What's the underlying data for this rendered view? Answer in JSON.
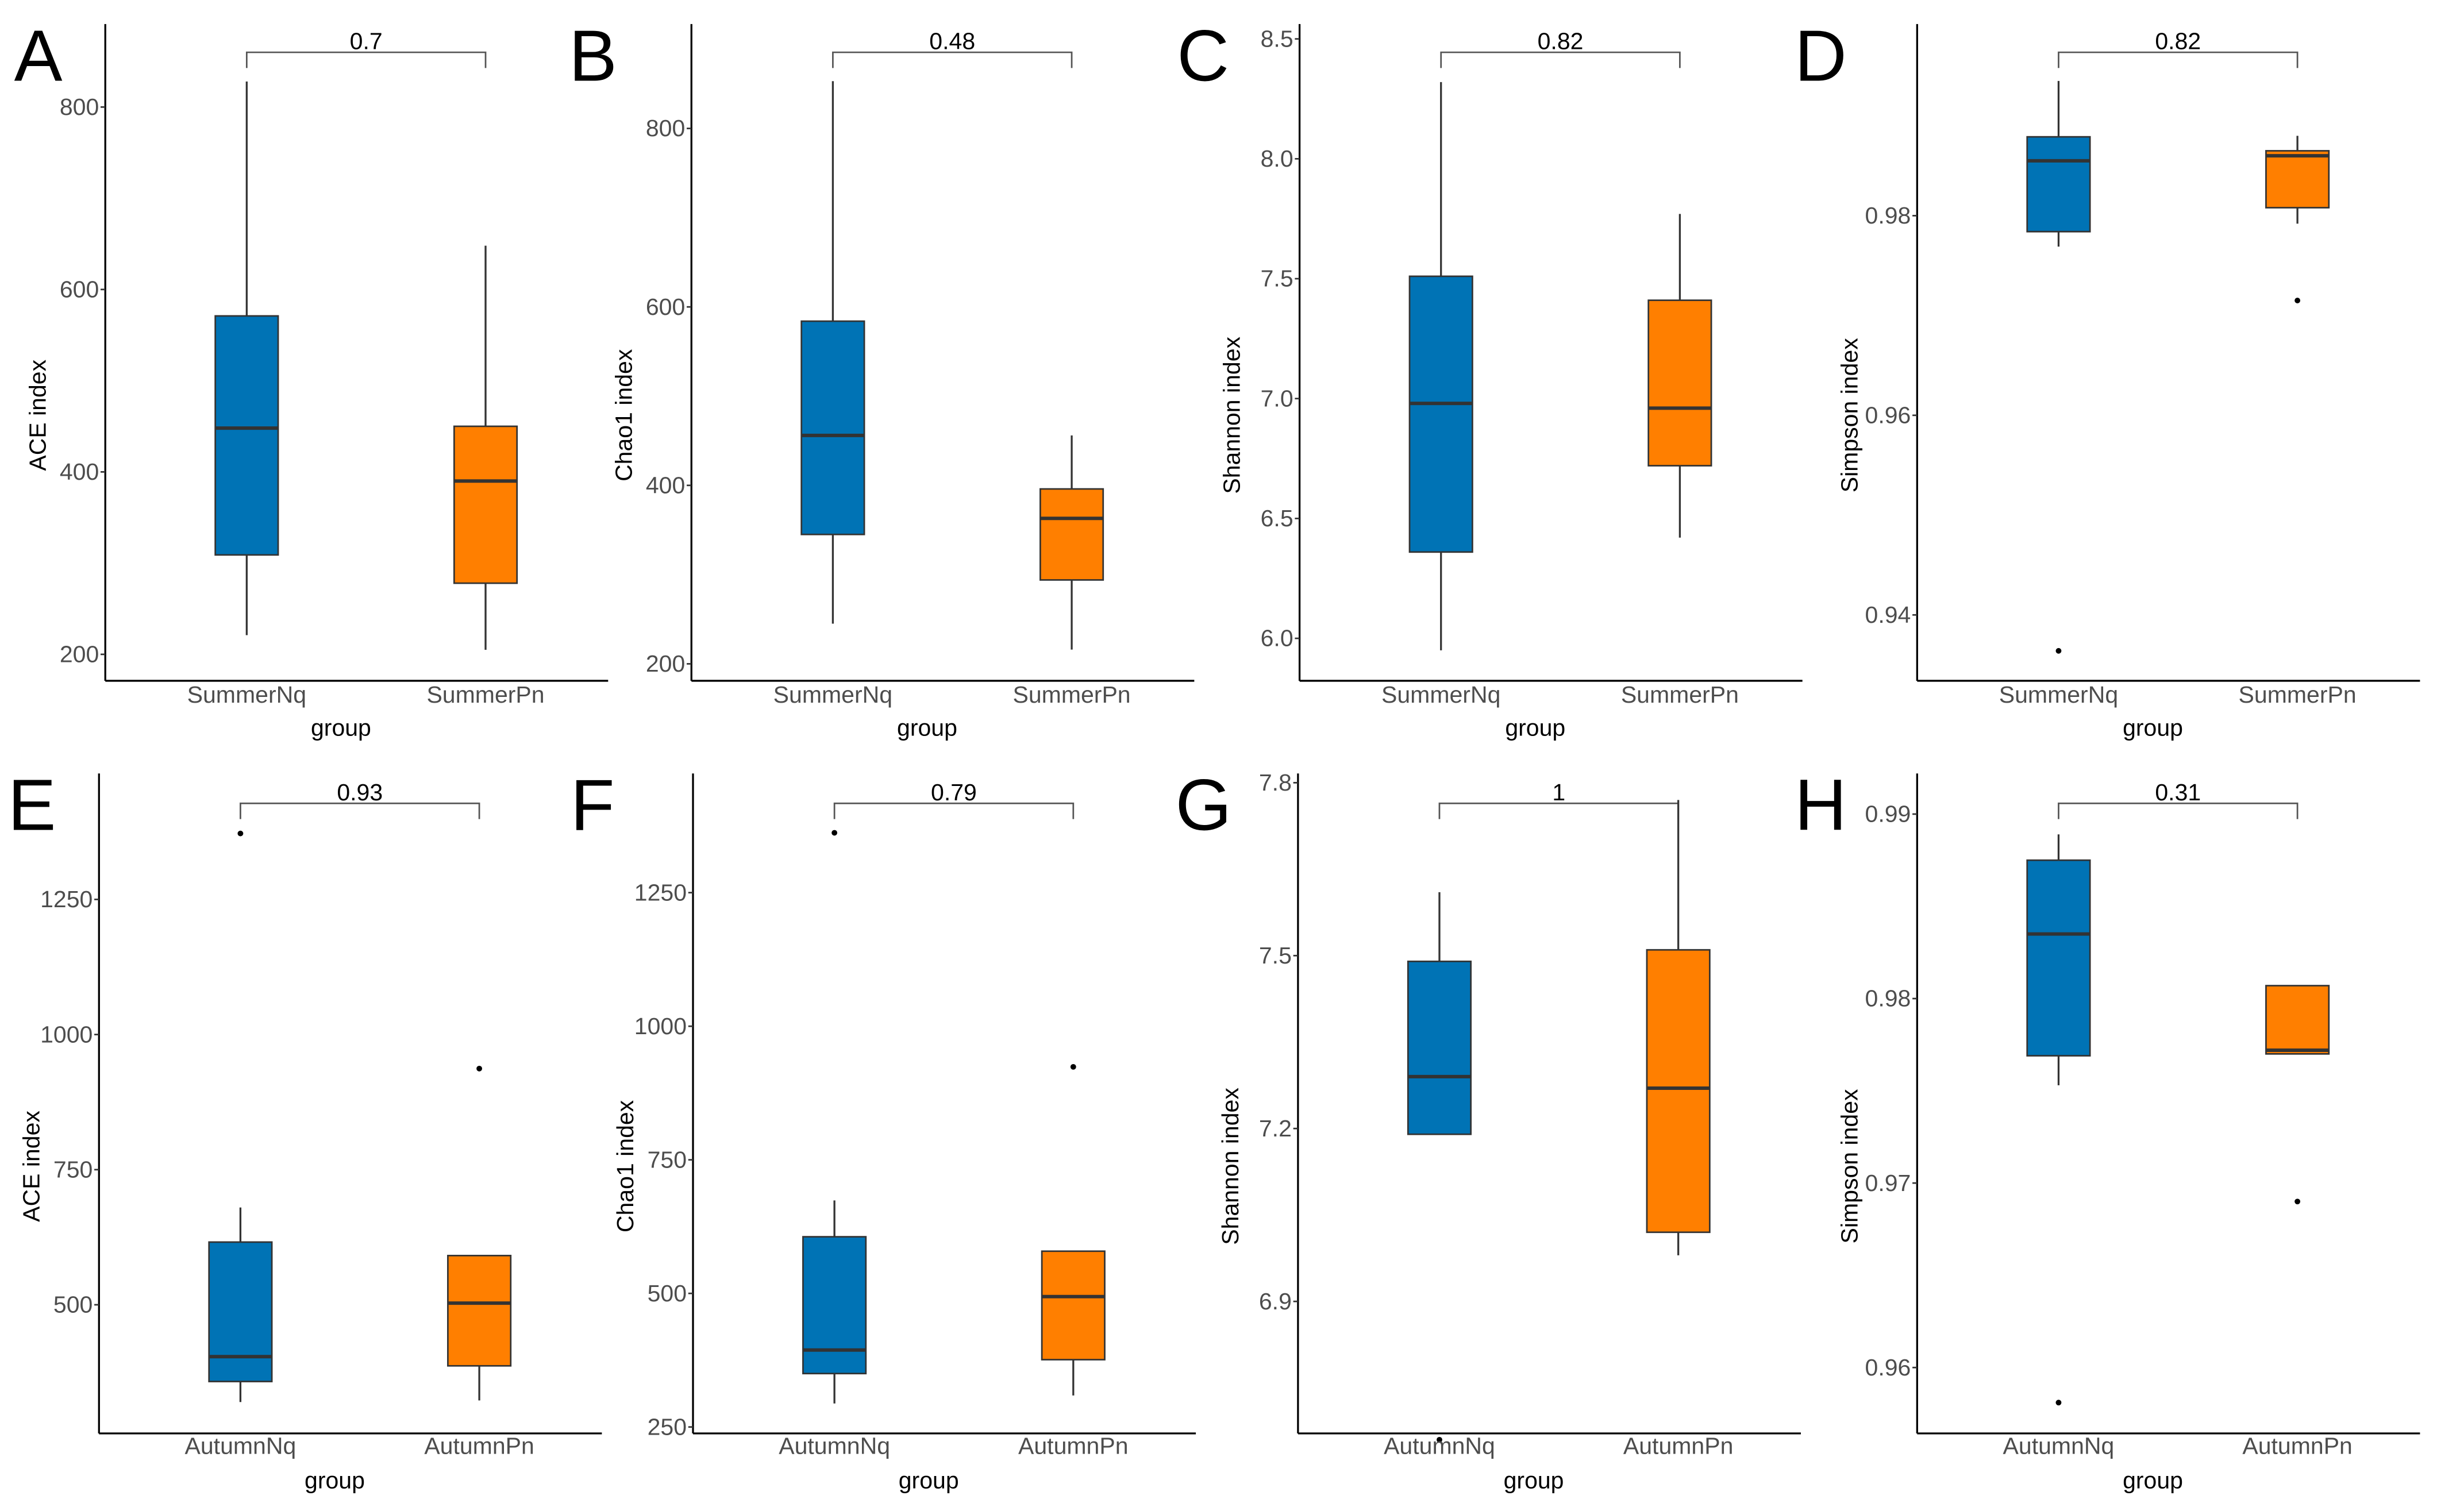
{
  "chart_data": [
    {
      "type": "box",
      "panel": "A",
      "ylabel": "ACE index",
      "xlabel": "group",
      "categories": [
        "SummerNq",
        "SummerPn"
      ],
      "p_value": "0.7",
      "yticks": [
        200,
        400,
        600,
        800
      ],
      "ylim": [
        171,
        891
      ],
      "boxes": [
        {
          "min": 221,
          "q1": 309,
          "median": 448,
          "q3": 571,
          "max": 828,
          "outliers": []
        },
        {
          "min": 205,
          "q1": 278,
          "median": 390,
          "q3": 450,
          "max": 648,
          "outliers": []
        }
      ]
    },
    {
      "type": "box",
      "panel": "B",
      "ylabel": "Chao1 index",
      "xlabel": "group",
      "categories": [
        "SummerNq",
        "SummerPn"
      ],
      "p_value": "0.48",
      "yticks": [
        200,
        400,
        600,
        800
      ],
      "ylim": [
        181,
        917
      ],
      "boxes": [
        {
          "min": 245,
          "q1": 345,
          "median": 456,
          "q3": 584,
          "max": 853,
          "outliers": []
        },
        {
          "min": 216,
          "q1": 294,
          "median": 363,
          "q3": 396,
          "max": 456,
          "outliers": []
        }
      ]
    },
    {
      "type": "box",
      "panel": "C",
      "ylabel": "Shannon index",
      "xlabel": "group",
      "categories": [
        "SummerNq",
        "SummerPn"
      ],
      "p_value": "0.82",
      "yticks": [
        6.0,
        6.5,
        7.0,
        7.5,
        8.0,
        8.5
      ],
      "ytick_labels": [
        "6.0",
        "6.5",
        "7.0",
        "7.5",
        "8.0",
        "8.5"
      ],
      "ylim": [
        5.823,
        8.562
      ],
      "boxes": [
        {
          "min": 5.95,
          "q1": 6.36,
          "median": 6.98,
          "q3": 7.51,
          "max": 8.32,
          "outliers": []
        },
        {
          "min": 6.42,
          "q1": 6.72,
          "median": 6.96,
          "q3": 7.41,
          "max": 7.77,
          "outliers": []
        }
      ]
    },
    {
      "type": "box",
      "panel": "D",
      "ylabel": "Simpson index",
      "xlabel": "group",
      "categories": [
        "SummerNq",
        "SummerPn"
      ],
      "p_value": "0.82",
      "yticks": [
        0.94,
        0.96,
        0.98
      ],
      "ytick_labels": [
        "0.94",
        "0.96",
        "0.98"
      ],
      "ylim": [
        0.9334,
        0.9992
      ],
      "boxes": [
        {
          "min": 0.9769,
          "q1": 0.9784,
          "median": 0.9855,
          "q3": 0.9879,
          "max": 0.9935,
          "outliers": [
            0.9364
          ]
        },
        {
          "min": 0.9792,
          "q1": 0.9808,
          "median": 0.986,
          "q3": 0.9865,
          "max": 0.988,
          "outliers": [
            0.9715
          ]
        }
      ]
    },
    {
      "type": "box",
      "panel": "E",
      "ylabel": "ACE index",
      "xlabel": "group",
      "categories": [
        "AutumnNq",
        "AutumnPn"
      ],
      "p_value": "0.93",
      "yticks": [
        500,
        750,
        1000,
        1250
      ],
      "ylim": [
        262,
        1483
      ],
      "boxes": [
        {
          "min": 320,
          "q1": 358,
          "median": 404,
          "q3": 616,
          "max": 680,
          "outliers": [
            1372
          ]
        },
        {
          "min": 323,
          "q1": 387,
          "median": 503,
          "q3": 591,
          "max": 591,
          "outliers": [
            937
          ]
        }
      ]
    },
    {
      "type": "box",
      "panel": "F",
      "ylabel": "Chao1 index",
      "xlabel": "group",
      "categories": [
        "AutumnNq",
        "AutumnPn"
      ],
      "p_value": "0.79",
      "yticks": [
        250,
        500,
        750,
        1000,
        1250
      ],
      "ylim": [
        238,
        1473
      ],
      "boxes": [
        {
          "min": 294,
          "q1": 350,
          "median": 394,
          "q3": 606,
          "max": 674,
          "outliers": [
            1362
          ]
        },
        {
          "min": 309,
          "q1": 376,
          "median": 494,
          "q3": 579,
          "max": 579,
          "outliers": [
            924
          ]
        }
      ]
    },
    {
      "type": "box",
      "panel": "G",
      "ylabel": "Shannon index",
      "xlabel": "group",
      "categories": [
        "AutumnNq",
        "AutumnPn"
      ],
      "p_value": "1",
      "yticks": [
        6.9,
        7.2,
        7.5,
        7.8
      ],
      "ytick_labels": [
        "6.9",
        "7.2",
        "7.5",
        "7.8"
      ],
      "ylim": [
        6.671,
        7.816
      ],
      "boxes": [
        {
          "min": 7.19,
          "q1": 7.19,
          "median": 7.29,
          "q3": 7.49,
          "max": 7.61,
          "outliers": [
            6.66
          ]
        },
        {
          "min": 6.98,
          "q1": 7.02,
          "median": 7.27,
          "q3": 7.51,
          "max": 7.77,
          "outliers": []
        }
      ]
    },
    {
      "type": "box",
      "panel": "H",
      "ylabel": "Simpson index",
      "xlabel": "group",
      "categories": [
        "AutumnNq",
        "AutumnPn"
      ],
      "p_value": "0.31",
      "yticks": [
        0.96,
        0.97,
        0.98,
        0.99
      ],
      "ytick_labels": [
        "0.96",
        "0.97",
        "0.98",
        "0.99"
      ],
      "ylim": [
        0.95643,
        0.9922
      ],
      "boxes": [
        {
          "min": 0.9753,
          "q1": 0.9769,
          "median": 0.9835,
          "q3": 0.9875,
          "max": 0.9889,
          "outliers": [
            0.9581
          ]
        },
        {
          "min": 0.977,
          "q1": 0.977,
          "median": 0.9772,
          "q3": 0.9807,
          "max": 0.9807,
          "outliers": [
            0.969
          ]
        }
      ]
    }
  ],
  "colors": {
    "group1": "#0073b5",
    "group2": "#ff7f00",
    "line": "#333333"
  }
}
